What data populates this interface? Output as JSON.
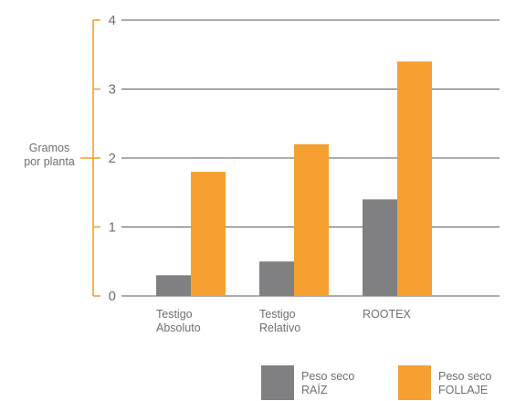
{
  "chart_data": {
    "type": "bar",
    "ylabel": [
      "Gramos",
      "por planta"
    ],
    "ylim": [
      0,
      4
    ],
    "yticks": [
      0,
      1,
      2,
      3,
      4
    ],
    "grid": true,
    "legend_position": "bottom-right",
    "categories": [
      [
        "Testigo",
        "Absoluto"
      ],
      [
        "Testigo",
        "Relativo"
      ],
      [
        "ROOTEX"
      ]
    ],
    "series": [
      {
        "name": [
          "Peso seco",
          "RAÍZ"
        ],
        "color": "#808083",
        "values": [
          0.3,
          0.5,
          1.4
        ]
      },
      {
        "name": [
          "Peso seco",
          "FOLLAJE"
        ],
        "color": "#f6a032",
        "values": [
          1.8,
          2.2,
          3.4
        ]
      }
    ],
    "colors": {
      "axis": "#f6a032",
      "grid": "#595959",
      "text": "#6f6f70"
    }
  }
}
